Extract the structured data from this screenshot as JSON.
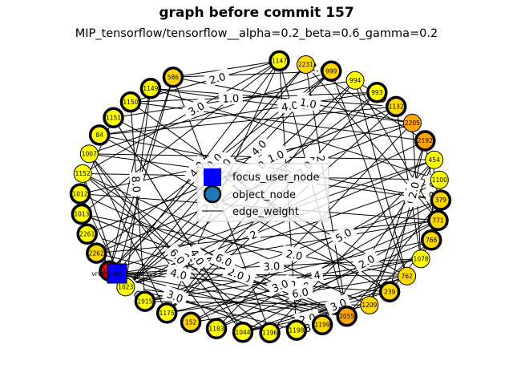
{
  "chart_data": {
    "type": "network",
    "title": "graph before commit 157",
    "subtitle": "MIP_tensorflow/tensorflow__alpha=0.2_beta=0.6_gamma=0.2",
    "legend": {
      "placement": "center",
      "entries": [
        "focus_user_node",
        "object_node",
        "edge_weight"
      ]
    },
    "focus_user": {
      "label": "vrv@google.com",
      "color": "#0000ff"
    },
    "colors": {
      "yellow": "#ffff00",
      "gold": "#ffd700",
      "orange": "#ffa500",
      "red": "#ff0000"
    },
    "nodes": [
      {
        "label": "1147",
        "color": "#ffff00",
        "bold": true
      },
      {
        "label": "2231",
        "color": "#ffd700",
        "bold": false
      },
      {
        "label": "999",
        "color": "#ffd700",
        "bold": true
      },
      {
        "label": "994",
        "color": "#ffff00",
        "bold": false
      },
      {
        "label": "993",
        "color": "#ffff00",
        "bold": true
      },
      {
        "label": "1132",
        "color": "#ffd700",
        "bold": true
      },
      {
        "label": "2205",
        "color": "#ffa500",
        "bold": false
      },
      {
        "label": "2192",
        "color": "#ffa500",
        "bold": true
      },
      {
        "label": "454",
        "color": "#ffff00",
        "bold": false
      },
      {
        "label": "1100",
        "color": "#ffff00",
        "bold": false
      },
      {
        "label": "379",
        "color": "#ffd700",
        "bold": true
      },
      {
        "label": "771",
        "color": "#ffd700",
        "bold": true
      },
      {
        "label": "766",
        "color": "#ffd700",
        "bold": true
      },
      {
        "label": "1078",
        "color": "#ffff00",
        "bold": false
      },
      {
        "label": "762",
        "color": "#ffd700",
        "bold": false
      },
      {
        "label": "239",
        "color": "#ffd700",
        "bold": true
      },
      {
        "label": "1209",
        "color": "#ffd700",
        "bold": false
      },
      {
        "label": "2055",
        "color": "#ffa500",
        "bold": true
      },
      {
        "label": "1199",
        "color": "#ffd700",
        "bold": true
      },
      {
        "label": "1198",
        "color": "#ffff00",
        "bold": true
      },
      {
        "label": "1196",
        "color": "#ffff00",
        "bold": true
      },
      {
        "label": "1044",
        "color": "#ffff00",
        "bold": true
      },
      {
        "label": "1183",
        "color": "#ffff00",
        "bold": true
      },
      {
        "label": "152",
        "color": "#ffd700",
        "bold": true
      },
      {
        "label": "1175",
        "color": "#ffff00",
        "bold": true
      },
      {
        "label": "1915",
        "color": "#ffff00",
        "bold": true
      },
      {
        "label": "1023",
        "color": "#ffff00",
        "bold": false
      },
      {
        "label": "2272",
        "color": "#ff0000",
        "bold": true
      },
      {
        "label": "2262",
        "color": "#ffd700",
        "bold": true
      },
      {
        "label": "2261",
        "color": "#ffff00",
        "bold": true
      },
      {
        "label": "1013",
        "color": "#ffff00",
        "bold": true
      },
      {
        "label": "1012",
        "color": "#ffff00",
        "bold": true
      },
      {
        "label": "1152",
        "color": "#ffff00",
        "bold": false
      },
      {
        "label": "1007",
        "color": "#ffff00",
        "bold": false
      },
      {
        "label": "84",
        "color": "#ffff00",
        "bold": true
      },
      {
        "label": "1151",
        "color": "#ffff00",
        "bold": true
      },
      {
        "label": "1150",
        "color": "#ffff00",
        "bold": true
      },
      {
        "label": "1149",
        "color": "#ffff00",
        "bold": true
      },
      {
        "label": "586",
        "color": "#ffd700",
        "bold": true
      }
    ],
    "edge_labels": [
      "5.0",
      "2",
      "3.0",
      "1.0",
      "2.0",
      "2.0",
      "2.0",
      "2.0",
      "1.0",
      "2",
      "5.0",
      "2.0",
      "2.0",
      "2.0",
      "4",
      "3.0",
      "2.0",
      "2.0",
      "1.0",
      "2.0",
      "3.0",
      "2",
      "3",
      "3.0",
      "3.0",
      "2",
      "3.0",
      "6.0",
      "4.0",
      "2.0",
      "4.0",
      "4.0",
      "4.0",
      "2.0",
      "2.0",
      "6.0",
      "3.0",
      "6.0",
      "4.0",
      "4.0",
      "8.0",
      "1",
      "1.0",
      "2.0",
      "4.0",
      "2.0",
      "4.0",
      "1",
      "1.0",
      "1.0"
    ]
  }
}
